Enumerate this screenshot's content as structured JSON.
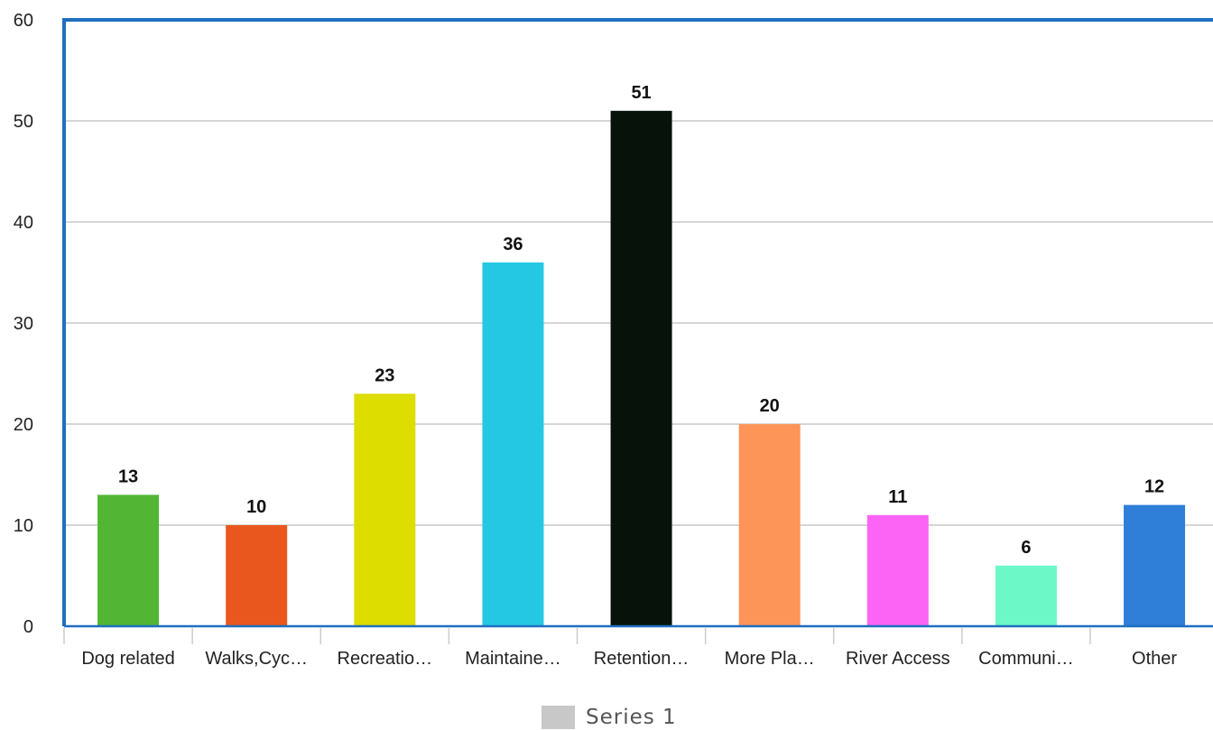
{
  "chart_data": {
    "type": "bar",
    "categories": [
      "Dog related",
      "Walks,Cyc…",
      "Recreatio…",
      "Maintaine…",
      "Retention…",
      "More Pla…",
      "River Access",
      "Communi…",
      "Other"
    ],
    "series": [
      {
        "name": "Series 1",
        "values": [
          13,
          10,
          23,
          36,
          51,
          20,
          11,
          6,
          12
        ]
      }
    ],
    "bar_colors": [
      "#52b534",
      "#ea571e",
      "#dddd00",
      "#25c8e3",
      "#07130a",
      "#fd9558",
      "#fc64f5",
      "#6cf9c7",
      "#2f7ed8"
    ],
    "data_labels": [
      "13",
      "10",
      "23",
      "36",
      "51",
      "20",
      "11",
      "6",
      "12"
    ],
    "yticks": [
      "0",
      "10",
      "20",
      "30",
      "40",
      "50",
      "60"
    ],
    "ylim": [
      0,
      60
    ],
    "grid": true,
    "legend": "bottom-center",
    "axis_color": "#1f6fbf",
    "grid_color": "#c8c8c8"
  }
}
